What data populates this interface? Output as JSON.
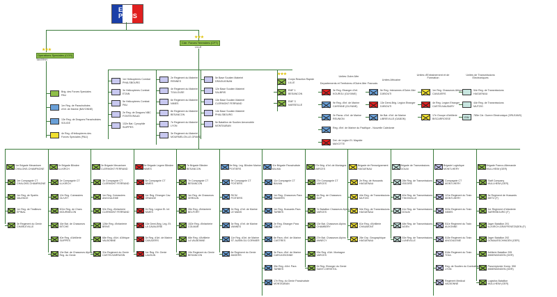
{
  "hq": {
    "label": "EMA PARIS"
  },
  "commands": {
    "ops": {
      "title": "Operations Speciales (COS)",
      "sub": "TAVERNY"
    },
    "cft": {
      "title": "Cde. Forces Terrestres (CFT)",
      "sub": "LILLE"
    }
  },
  "cos_units": [
    {
      "label": "Brig. des Forces Speciales",
      "label2": "PAU",
      "color": "#8fbf4a"
    },
    {
      "label": "1er Reg. de Parachutistes",
      "label2": "d'Inf. de Marine (BAYONNE)",
      "color": "#6aa0d8"
    },
    {
      "label": "13e Reg. de Dragons Parachutistes",
      "label2": "SOUGE",
      "color": "#6aa0d8"
    },
    {
      "label": "4e Reg. d'Helicopteres des",
      "label2": "Forces Speciales (PAU)",
      "color": "#f0e030"
    }
  ],
  "aviation_units": [
    {
      "label": "1er Helicopteres Combat",
      "label2": "PHALSBOURG"
    },
    {
      "label": "3e Helicopteres Combat",
      "label2": "ETAIN"
    },
    {
      "label": "5e Helicopteres Combat",
      "label2": "PAU"
    },
    {
      "label": "2e Reg. de Dragons NBC",
      "label2": "FONTEVRAUD"
    },
    {
      "label": "132e Bat. Cynophile",
      "label2": "SUIPPES"
    }
  ],
  "materiel_units": [
    {
      "label": "2e Regiment du Materiel",
      "label2": "RENNES"
    },
    {
      "label": "4e Regiment du Materiel",
      "label2": "TOULOUSE"
    },
    {
      "label": "6e Regiment du Materiel",
      "label2": "NIMES"
    },
    {
      "label": "8e Regiment du Materiel",
      "label2": "BESANCON"
    },
    {
      "label": "7e Regiment du Materiel",
      "label2": "LYON"
    },
    {
      "label": "3e Regiment du Materiel",
      "label2": "MOURMELON-LE-GRAND"
    }
  ],
  "support_units": [
    {
      "label": "5e Base Soutien Materiel",
      "label2": "DRAGUIGNAN"
    },
    {
      "label": "12e Base Soutien Materiel",
      "label2": "SALBRIS"
    },
    {
      "label": "13e Base Soutien Materiel",
      "label2": "CLERMONT FERRAND"
    },
    {
      "label": "14e Base Soutien Materiel",
      "label2": "PHALSBOURG"
    },
    {
      "label": "5e Bataillon de Soutien Aeromobile",
      "label2": "MONTAUBAN"
    }
  ],
  "rapid": {
    "title": "Corps Reaction Rapide",
    "sub": "LILLE",
    "units": [
      {
        "label": "EMF 1",
        "label2": "BESANCON"
      },
      {
        "label": "EMF 3",
        "label2": "MARSEILLE"
      }
    ]
  },
  "overseas": {
    "title": "Unites Outre-Mer",
    "sub": "Departements et Territoires d'Outre-Mer Francais",
    "units": [
      {
        "label": "3e Reg. Etranger d'Inf.",
        "label2": "KOUROU (GUYANE)",
        "color": "#e02020"
      },
      {
        "label": "9e Reg. d'Inf. de Marine",
        "label2": "CAYENNE (GUYANE)",
        "color": "#6aa0d8"
      },
      {
        "label": "2e Parac. d'Inf. de Marine",
        "label2": "REUNION",
        "color": "#6aa0d8"
      },
      {
        "label": "Reg. d'Inf. de Marine du Pacifique - Nouvelle Caledonie",
        "label2": "",
        "color": "#6aa0d8"
      },
      {
        "label": "Det. de Legion Et. Mayotte",
        "label2": "MAYOTTE",
        "color": "#e02020"
      }
    ]
  },
  "africa": {
    "title": "Unites Africaine",
    "units": [
      {
        "label": "5e Reg. Interarmes d'Outre-Mer",
        "label2": "DJIBOUTI",
        "color": "#6aa0d8"
      },
      {
        "label": "13e Demi-Brig. Legion Etranger",
        "label2": "DJIBOUTI",
        "color": "#e02020"
      },
      {
        "label": "6e Bat. d'Inf. de Marine",
        "label2": "LIBREVILLE (GABON)",
        "color": "#6aa0d8"
      }
    ]
  },
  "training": {
    "title": "Unites d'Entrainement et de Formation",
    "units": [
      {
        "label": "1er Reg. Chasseurs Afrique",
        "label2": "CANJUERS",
        "color": "#f0e030"
      },
      {
        "label": "4e Reg. Legion Etranger",
        "label2": "CASTELNAUDARY",
        "color": "#e02020"
      },
      {
        "label": "17e Groupe d'Artillerie",
        "label2": "BISCARROSSE",
        "color": "#f0e030"
      }
    ]
  },
  "transmission": {
    "title": "Unites de Transmissions Electroniques",
    "units": [
      {
        "label": "54e Reg. de Transmissions",
        "label2": "HAGUENAU",
        "code": "",
        "color": "#c8e6e0"
      },
      {
        "label": "44e Reg. de Transmissions",
        "label2": "MUTZIG",
        "code": "",
        "color": "#c8e6e0"
      },
      {
        "label": "785e Cie. Guerre Electronique (ORLEANS)",
        "label2": "",
        "code": "EW",
        "color": "#c8e6e0"
      }
    ]
  },
  "brigades": [
    {
      "name": "1re Brigade Mecanisee",
      "hq": "CHALONS-CHAMPAGNE",
      "color": "#8fbf4a",
      "units": [
        "1re Compagnie CT|CHALONS-CHAMPAGNE",
        "1er Reg. de Spahis|VALENCE",
        "1er Reg. de Tirailleurs|EPINAL",
        "3e Regiment du Genie|CHARLEVILLE"
      ]
    },
    {
      "name": "2e Brigade Blindee",
      "hq": "ILLKIRCH",
      "color": "#8fbf4a",
      "units": [
        "2e Compagnie CT|ILLKIRCH",
        "12e Reg. Cuirassiers|OLIVET",
        "501e Reg. de Chars|MOURMELON",
        "16e Bat. de Chasseurs|BITCHE",
        "40e Reg. d'Artillerie|SUIPPES",
        "13e Bat. de Chasseurs Alpins|Reg. du Genie"
      ]
    },
    {
      "name": "3e Brigade Mecanisee",
      "hq": "CLERMONT FERRAND",
      "color": "#8fbf4a",
      "units": [
        "3e Compagnie CT|CLERMONT FERRAND",
        "1er Reg. Cuirassiers|ANGOULEME",
        "92e Reg. d'Infanterie|CLERMONT FERRAND",
        "126e Reg. d'Infanterie|BRIVE",
        "68e Reg. d'Art. d'Afrique|VALBONNE",
        "31e Regiment du Genie|CASTELSARRASIN"
      ]
    },
    {
      "name": "6e Brigade Legere Blindee",
      "hq": "NIMES",
      "color": "#e02020",
      "units": [
        "6e Compagnie CT|NIMES",
        "1er Reg. Etranger Cav.|ORANGE",
        "2e Reg. Legion Et. Inf.|NIMES",
        "13e Demi-Brig. Leg. Et.|LA CAVALERIE",
        "3e Reg. d'Art. de Marine|CANJUERS",
        "1er Reg. Etr. Genie|LAUDUN"
      ]
    },
    {
      "name": "7e Brigade Blindee",
      "hq": "BESANCON",
      "color": "#8fbf4a",
      "units": [
        "7e Compagnie CT|BESANCON",
        "1er Reg. de Chasseurs|VERDUN",
        "35e Reg. d'Infanterie|BELFORT",
        "152e Reg. d'Infanterie|COLMAR",
        "68e Reg. d'Artillerie|LA VALBONNE",
        "19e Regiment du Genie|BESANCON"
      ]
    },
    {
      "name": "9e Brig. Leg. Blindee Marine",
      "hq": "POITIERS",
      "color": "#6aa0d8",
      "units": [
        "9e Compagnie CT|POITIERS",
        "RICM|POITIERS",
        "2e Reg. d'Inf. de Marine|LE MANS",
        "3e Reg. d'Inf. de Marine|VANNES",
        "11e Reg. d'Art. de Marine|ST. AUBIN DU CORMIER",
        "6e Regiment du Genie|ANGERS"
      ]
    },
    {
      "name": "11e Brigade Parachutiste",
      "hq": "BALMA",
      "color": "#6aa0d8",
      "units": [
        "11e Compagnie CT|BALMA",
        "1er Reg. Chasseurs Para|PAMIERS",
        "1er Reg. Hussards Para|TARBES",
        "2e Reg. Etranger Para|CALVI",
        "8e Para. d'Inf. de Marine|CASTRES",
        "3e Para. d'Inf. de Marine|CARCASSONNE",
        "35e Reg. d'Art. Para|TARBES",
        "17e Reg. du Genie Parachutiste|MONTAUBAN",
        "1er Reg. du Train Parachutiste|TOULOUSE"
      ]
    },
    {
      "name": "27e Brig. d'Inf. de Montagne",
      "hq": "VARCES",
      "color": "#8fbf4a",
      "units": [
        "27e Compagnie CT|VARCES",
        "4e Reg. de Chasseurs|GAP",
        "7e Bataillon Chasseurs Alpins|VARCES",
        "13e Bat. Chasseurs Alpins|CHAMBERY",
        "27e Bat. Chasseurs Alpins|ANNECY",
        "93e Reg. d'Art. Montagne|VARCES",
        "2e Reg. Etranger du Genie|SAINT-CHRISTOL"
      ]
    },
    {
      "name": "Brigade de Renseignement",
      "hq": "HAGUENAU",
      "color": "#f0e030",
      "units": [
        "2e Reg. de Hussards|HAGUENAU",
        "44e Reg. de Transmissions|MUTZIG",
        "54e Reg. de Transmissions|HAGUENAU",
        "61e Reg. d'Artillerie|CHAUMONT",
        "28e Grp. Geographique|HAGUENAU"
      ]
    },
    {
      "name": "Brigade de Transmissions",
      "hq": "DOUAI",
      "color": "#c8e6e0",
      "units": [
        "28e Reg. de Transmissions|ISSOIRE",
        "40e Reg. de Transmissions|THIONVILLE",
        "41e Reg. de Transmissions|DOUAI",
        "48e Reg. de Transmissions|AGEN",
        "53e Reg. de Transmissions|LUNEVILLE"
      ]
    },
    {
      "name": "Brigade Logistique",
      "hq": "MONTLHERY",
      "color": "#c8c8f0",
      "units": [
        "Compagnie CT|MONTLHERY",
        "121e Regiment du Train|MONTLHERY",
        "503e Regiment du Train|NIMES",
        "511e Regiment du Train|AUXONNE",
        "515e Regiment du Train|ANGOULEME",
        "516e Regiment du Train|TOUL",
        "Reg. de Soutien du Combattant|LYON",
        "Regiment Medical|VALBONNE",
        "519e Groupe de Transit Maritime (TOULON)|"
      ]
    },
    {
      "name": "Brigade Franco-Allemande",
      "hq": "MULLHEIM (GER)",
      "color": "#8fbf4a",
      "units": [
        "Staff Company|MULLHEIM (GER)",
        "3e Regiment de Hussards|METZ (F)",
        "1er Regiment d'Infanterie|SARREBOURG (F)",
        "Jager Bataillon 291|ILLKIRCH-GRAFFENSTADEN (F)",
        "Jager Bataillon 292|DONAUESCHINGEN (GER)",
        "Artillerie Bataillon 295|IMMENDINGEN (GER)",
        "Panzerpionier Komp. 550|IMMENDINGEN (GER)",
        "Logistics Bataillon|MULLHEIM (GER)"
      ]
    }
  ]
}
